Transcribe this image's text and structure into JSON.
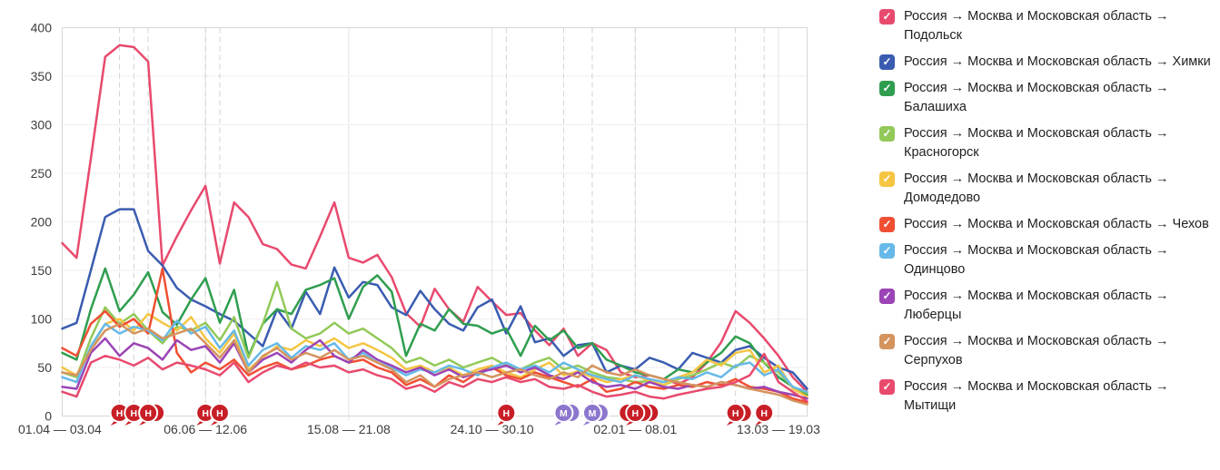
{
  "chart_data": {
    "type": "line",
    "title": "",
    "xlabel": "",
    "ylabel": "",
    "ylim": [
      0,
      400
    ],
    "y_tick_step": 50,
    "y_tick_labels": [
      "0",
      "50",
      "100",
      "150",
      "200",
      "250",
      "300",
      "350",
      "400"
    ],
    "grid": true,
    "legend_position": "right",
    "weeks_total": 53,
    "x_tick_weeks": [
      0,
      10,
      20,
      30,
      40,
      50
    ],
    "x_tick_labels": [
      "01.04 — 03.04",
      "06.06 — 12.06",
      "15.08 — 21.08",
      "24.10 — 30.10",
      "02.01 — 08.01",
      "13.03 — 19.03"
    ],
    "series": [
      {
        "name": "Россия → Москва и Московская область → Подольск",
        "city": "Подольск",
        "color": "#e84a6e",
        "values": [
          178,
          163,
          265,
          370,
          382,
          380,
          365,
          155,
          185,
          212,
          237,
          157,
          220,
          205,
          177,
          172,
          156,
          152,
          185,
          220,
          163,
          158,
          166,
          143,
          106,
          92,
          131,
          110,
          97,
          133,
          118,
          104,
          106,
          88,
          73,
          90,
          62,
          75,
          68,
          45,
          40,
          42,
          38,
          33,
          40,
          55,
          76,
          108,
          96,
          80,
          62,
          40,
          25
        ]
      },
      {
        "name": "Россия → Москва и Московская область → Химки",
        "city": "Химки",
        "color": "#3a5cb0",
        "values": [
          90,
          96,
          150,
          205,
          213,
          213,
          170,
          155,
          132,
          120,
          113,
          105,
          98,
          85,
          72,
          110,
          90,
          128,
          105,
          153,
          122,
          138,
          135,
          112,
          104,
          129,
          110,
          95,
          88,
          112,
          120,
          85,
          113,
          76,
          80,
          62,
          73,
          75,
          45,
          52,
          48,
          60,
          55,
          48,
          65,
          60,
          55,
          68,
          72,
          60,
          50,
          45,
          28
        ]
      },
      {
        "name": "Россия → Москва и Московская область → Балашиха",
        "city": "Балашиха",
        "color": "#2f9e4f",
        "values": [
          65,
          58,
          110,
          152,
          108,
          125,
          148,
          107,
          94,
          120,
          142,
          96,
          130,
          62,
          95,
          110,
          105,
          130,
          135,
          142,
          100,
          133,
          145,
          128,
          62,
          95,
          88,
          110,
          95,
          93,
          85,
          90,
          62,
          93,
          78,
          88,
          70,
          75,
          58,
          52,
          45,
          42,
          38,
          48,
          45,
          55,
          65,
          82,
          75,
          55,
          40,
          30,
          22
        ]
      },
      {
        "name": "Россия → Москва и Московская область → Красногорск",
        "city": "Красногорск",
        "color": "#92c959",
        "values": [
          45,
          40,
          80,
          112,
          95,
          105,
          88,
          75,
          92,
          88,
          96,
          78,
          102,
          60,
          95,
          138,
          90,
          80,
          85,
          96,
          85,
          90,
          80,
          70,
          55,
          60,
          52,
          58,
          50,
          55,
          60,
          52,
          48,
          55,
          60,
          48,
          52,
          45,
          40,
          38,
          35,
          36,
          32,
          38,
          42,
          48,
          55,
          50,
          62,
          55,
          45,
          30,
          24
        ]
      },
      {
        "name": "Россия → Москва и Московская область → Домодедово",
        "city": "Домодедово",
        "color": "#f5c543",
        "values": [
          50,
          42,
          70,
          95,
          100,
          88,
          105,
          96,
          88,
          102,
          80,
          65,
          85,
          48,
          60,
          72,
          68,
          78,
          72,
          80,
          70,
          75,
          68,
          60,
          48,
          52,
          45,
          50,
          42,
          48,
          52,
          45,
          40,
          48,
          55,
          42,
          46,
          40,
          35,
          38,
          42,
          36,
          32,
          40,
          45,
          58,
          52,
          65,
          68,
          45,
          52,
          28,
          20
        ]
      },
      {
        "name": "Россия → Москва и Московская область → Чехов",
        "city": "Чехов",
        "color": "#f04f33",
        "values": [
          70,
          62,
          95,
          108,
          92,
          100,
          85,
          152,
          65,
          45,
          55,
          48,
          58,
          42,
          50,
          55,
          48,
          52,
          58,
          62,
          55,
          58,
          50,
          45,
          32,
          38,
          30,
          42,
          35,
          45,
          50,
          42,
          38,
          45,
          40,
          35,
          30,
          38,
          25,
          28,
          35,
          30,
          28,
          32,
          30,
          35,
          32,
          38,
          30,
          28,
          25,
          18,
          14
        ]
      },
      {
        "name": "Россия → Москва и Московская область → Одинцово",
        "city": "Одинцово",
        "color": "#66b9e8",
        "values": [
          40,
          35,
          72,
          95,
          85,
          92,
          88,
          78,
          98,
          85,
          92,
          70,
          88,
          52,
          68,
          75,
          60,
          72,
          68,
          75,
          58,
          65,
          55,
          50,
          42,
          48,
          45,
          52,
          48,
          42,
          50,
          55,
          48,
          52,
          45,
          55,
          48,
          42,
          38,
          35,
          42,
          38,
          35,
          40,
          38,
          45,
          40,
          52,
          55,
          42,
          48,
          30,
          25
        ]
      },
      {
        "name": "Россия → Москва и Московская область → Люберцы",
        "city": "Люберцы",
        "color": "#9b44b6",
        "values": [
          30,
          28,
          65,
          80,
          62,
          75,
          70,
          58,
          78,
          68,
          72,
          55,
          75,
          45,
          58,
          65,
          55,
          68,
          78,
          62,
          55,
          68,
          58,
          52,
          45,
          50,
          42,
          48,
          40,
          45,
          48,
          52,
          45,
          50,
          42,
          38,
          45,
          35,
          30,
          32,
          28,
          35,
          30,
          28,
          32,
          30,
          35,
          32,
          28,
          30,
          25,
          22,
          18
        ]
      },
      {
        "name": "Россия → Москва и Московская область → Серпухов",
        "city": "Серпухов",
        "color": "#d5945e",
        "values": [
          45,
          42,
          68,
          88,
          95,
          85,
          90,
          80,
          85,
          90,
          75,
          60,
          78,
          45,
          62,
          70,
          58,
          65,
          60,
          68,
          58,
          62,
          55,
          48,
          35,
          42,
          30,
          38,
          42,
          45,
          40,
          45,
          48,
          42,
          38,
          45,
          40,
          52,
          45,
          42,
          48,
          42,
          38,
          35,
          32,
          30,
          35,
          32,
          28,
          25,
          22,
          16,
          12
        ]
      },
      {
        "name": "Россия → Москва и Московская область → Мытищи",
        "city": "Мытищи",
        "color": "#e84a6e",
        "values": [
          25,
          20,
          55,
          62,
          58,
          52,
          60,
          48,
          55,
          52,
          48,
          42,
          55,
          35,
          45,
          52,
          48,
          55,
          50,
          52,
          45,
          48,
          42,
          38,
          28,
          32,
          25,
          35,
          30,
          38,
          35,
          40,
          35,
          38,
          30,
          28,
          32,
          25,
          20,
          22,
          25,
          20,
          18,
          22,
          25,
          28,
          30,
          35,
          42,
          64,
          35,
          25,
          15
        ]
      }
    ],
    "event_markers": [
      {
        "week": 4,
        "letter": "Н",
        "color": "#c81e26",
        "stack": 0
      },
      {
        "week": 5,
        "letter": "Н",
        "color": "#c81e26",
        "stack": 0
      },
      {
        "week": 6,
        "letter": "Н",
        "color": "#c81e26",
        "stack": 1
      },
      {
        "week": 10,
        "letter": "Н",
        "color": "#c81e26",
        "stack": 0
      },
      {
        "week": 11,
        "letter": "Н",
        "color": "#c81e26",
        "stack": 0
      },
      {
        "week": 31,
        "letter": "Н",
        "color": "#c81e26",
        "stack": 0
      },
      {
        "week": 35,
        "letter": "М",
        "color": "#8c76cd",
        "stack": 1
      },
      {
        "week": 37,
        "letter": "М",
        "color": "#8c76cd",
        "stack": 1
      },
      {
        "week": 40,
        "letter": "Н",
        "color": "#c81e26",
        "stack": 2,
        "stack_left": 1
      },
      {
        "week": 47,
        "letter": "Н",
        "color": "#c81e26",
        "stack": 1
      },
      {
        "week": 49,
        "letter": "Н",
        "color": "#c81e26",
        "stack": 0
      }
    ]
  },
  "legend": {
    "region_prefix": "Россия → Москва и Московская область →",
    "checkmark": "✓",
    "items": [
      {
        "label": "Россия → Москва и Московская область → Подольск",
        "color": "#e84a6e"
      },
      {
        "label": "Россия → Москва и Московская область → Химки",
        "color": "#3a5cb0"
      },
      {
        "label": "Россия → Москва и Московская область → Балашиха",
        "color": "#2f9e4f"
      },
      {
        "label": "Россия → Москва и Московская область → Красногорск",
        "color": "#92c959"
      },
      {
        "label": "Россия → Москва и Московская область → Домодедово",
        "color": "#f5c543"
      },
      {
        "label": "Россия → Москва и Московская область → Чехов",
        "color": "#f04f33"
      },
      {
        "label": "Россия → Москва и Московская область → Одинцово",
        "color": "#66b9e8"
      },
      {
        "label": "Россия → Москва и Московская область → Люберцы",
        "color": "#9b44b6"
      },
      {
        "label": "Россия → Москва и Московская область → Серпухов",
        "color": "#d5945e"
      },
      {
        "label": "Россия → Москва и Московская область → Мытищи",
        "color": "#e84a6e"
      }
    ]
  },
  "style": {
    "plot_border_color": "#d8d6d2",
    "h_grid_color": "#cfcfcf",
    "v_grid_color": "#e6e4e0",
    "dash_line_color": "#d2d2d2",
    "axis_text_color": "#3c3c3c"
  }
}
